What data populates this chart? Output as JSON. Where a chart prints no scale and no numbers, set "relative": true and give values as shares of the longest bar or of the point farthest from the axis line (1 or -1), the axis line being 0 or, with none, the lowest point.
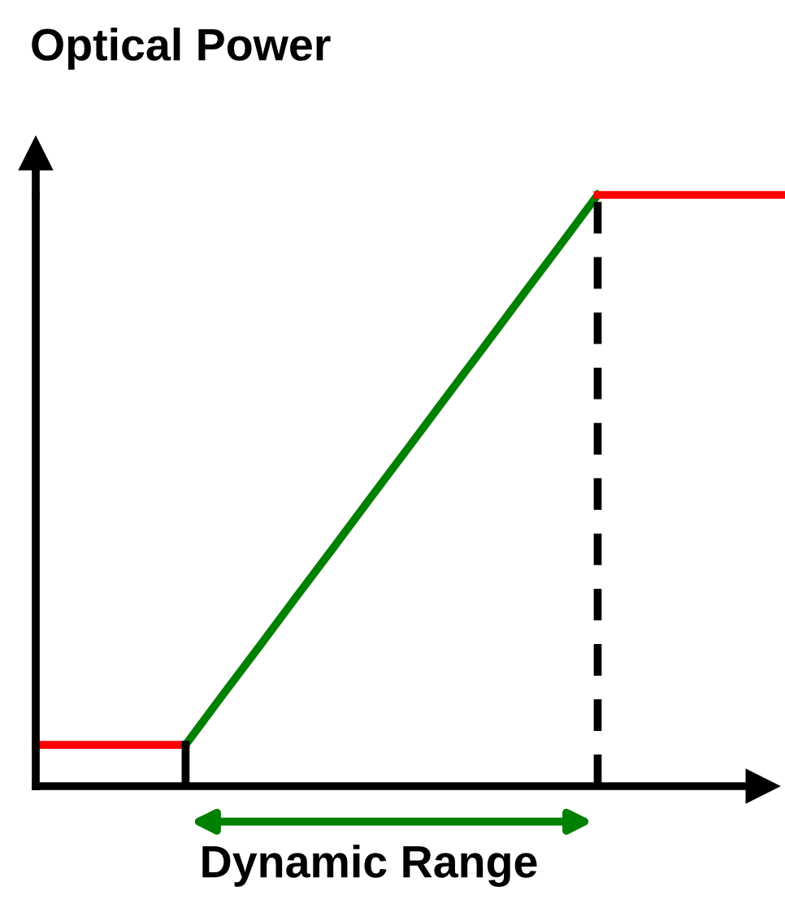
{
  "chart_data": {
    "type": "line",
    "relative": true,
    "ylabel": "Optical Power",
    "xlabel": "Dynamic Range",
    "legend": false,
    "line_style": "solid",
    "marker": "none",
    "categories": [
      null,
      null,
      null,
      null,
      null,
      null,
      null,
      null,
      null,
      null,
      null,
      null,
      null,
      null,
      null,
      null,
      null,
      null,
      null,
      null,
      null
    ],
    "series": [
      {
        "color": "#ff0000",
        "values": [
          0.07,
          0.07,
          0.07,
          0.07,
          0.07,
          null,
          null,
          null,
          null,
          null,
          null,
          null,
          null,
          null,
          null,
          null,
          null,
          null,
          null,
          null,
          null
        ]
      },
      {
        "color": "#008000",
        "values": [
          null,
          null,
          null,
          null,
          0.07,
          0.155,
          0.239,
          0.324,
          0.408,
          0.493,
          0.577,
          0.662,
          0.746,
          0.831,
          0.915,
          1,
          null,
          null,
          null,
          null,
          null
        ]
      },
      {
        "color": "#ff0000",
        "values": [
          null,
          null,
          null,
          null,
          null,
          null,
          null,
          null,
          null,
          null,
          null,
          null,
          null,
          null,
          null,
          1,
          1,
          1,
          1,
          1,
          1
        ]
      }
    ]
  }
}
